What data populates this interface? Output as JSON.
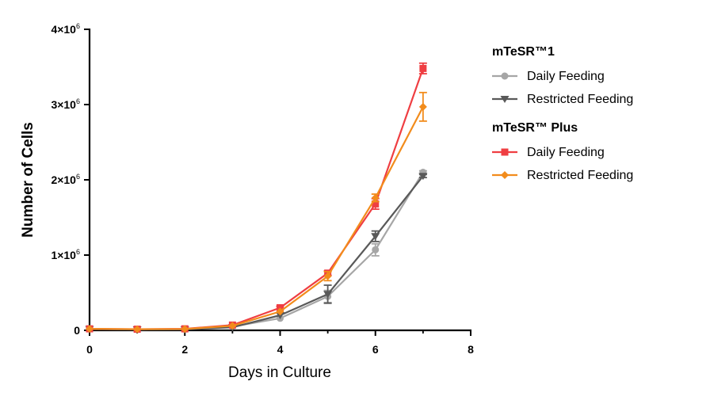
{
  "chart_data": {
    "type": "line",
    "xlabel": "Days in Culture",
    "ylabel": "Number of Cells",
    "xlim": [
      0,
      8
    ],
    "ylim": [
      0,
      4000000
    ],
    "x_ticks": [
      0,
      2,
      4,
      6,
      8
    ],
    "x_tick_labels": [
      "0",
      "2",
      "4",
      "6",
      "8"
    ],
    "y_ticks": [
      0,
      1000000,
      2000000,
      3000000,
      4000000
    ],
    "y_tick_labels": [
      {
        "base": "0",
        "exp": ""
      },
      {
        "base": "1×10",
        "exp": "6"
      },
      {
        "base": "2×10",
        "exp": "6"
      },
      {
        "base": "3×10",
        "exp": "6"
      },
      {
        "base": "4×10",
        "exp": "6"
      }
    ],
    "grid": false,
    "legend_position": "right",
    "legend_groups": [
      {
        "title": "mTeSR™1",
        "entries": [
          0,
          1
        ]
      },
      {
        "title": "mTeSR™ Plus",
        "entries": [
          2,
          3
        ]
      }
    ],
    "x": [
      0,
      1,
      2,
      3,
      4,
      5,
      6,
      7
    ],
    "series": [
      {
        "name": "Daily Feeding",
        "group": "mTeSR™1",
        "color": "#a6a6a6",
        "marker": "circle",
        "values": [
          20000,
          10000,
          15000,
          50000,
          160000,
          450000,
          1070000,
          2100000
        ],
        "errors": [
          0,
          0,
          0,
          0,
          0,
          80000,
          80000,
          20000
        ]
      },
      {
        "name": "Restricted Feeding",
        "group": "mTeSR™1",
        "color": "#595959",
        "marker": "triangle-down",
        "values": [
          15000,
          10000,
          12000,
          40000,
          200000,
          480000,
          1250000,
          2050000
        ],
        "errors": [
          0,
          0,
          0,
          0,
          0,
          120000,
          70000,
          20000
        ]
      },
      {
        "name": "Daily Feeding",
        "group": "mTeSR™ Plus",
        "color": "#ef3e42",
        "marker": "square",
        "values": [
          20000,
          15000,
          20000,
          70000,
          300000,
          760000,
          1680000,
          3480000
        ],
        "errors": [
          0,
          0,
          0,
          0,
          20000,
          30000,
          70000,
          70000
        ]
      },
      {
        "name": "Restricted Feeding",
        "group": "mTeSR™ Plus",
        "color": "#f28c1c",
        "marker": "diamond",
        "values": [
          20000,
          15000,
          18000,
          60000,
          250000,
          720000,
          1760000,
          2970000
        ],
        "errors": [
          0,
          0,
          0,
          0,
          0,
          60000,
          50000,
          190000
        ]
      }
    ]
  }
}
